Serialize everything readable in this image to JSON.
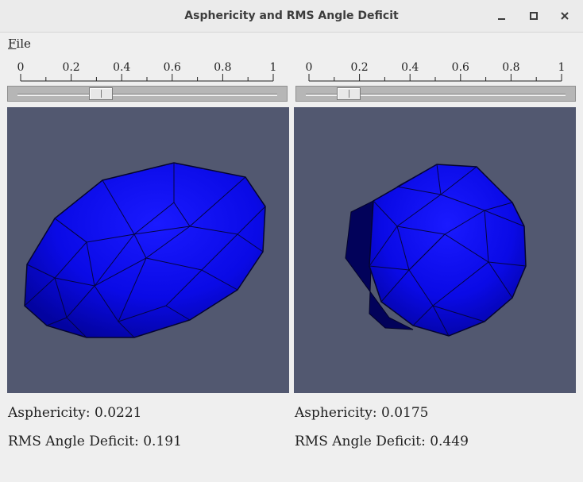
{
  "window": {
    "title": "Asphericity and RMS Angle Deficit",
    "minimize_icon": "minimize-icon",
    "maximize_icon": "maximize-icon",
    "close_icon": "close-icon"
  },
  "menu": {
    "file_label": "File"
  },
  "panels": [
    {
      "ruler_labels": [
        "0",
        "0.2",
        "0.4",
        "0.6",
        "0.8",
        "1"
      ],
      "slider_value": 0.3,
      "render_icon": "ellipsoid-mesh",
      "asphericity_label": "Asphericity: 0.0221",
      "rms_label": "RMS Angle Deficit: 0.191"
    },
    {
      "ruler_labels": [
        "0",
        "0.2",
        "0.4",
        "0.6",
        "0.8",
        "1"
      ],
      "slider_value": 0.13,
      "render_icon": "sphere-mesh",
      "asphericity_label": "Asphericity: 0.0175",
      "rms_label": "RMS Angle Deficit: 0.449"
    }
  ],
  "colors": {
    "viewport_background": "#525870",
    "mesh_fill": "#0b0bf2",
    "mesh_edge": "#0a0a3a"
  }
}
